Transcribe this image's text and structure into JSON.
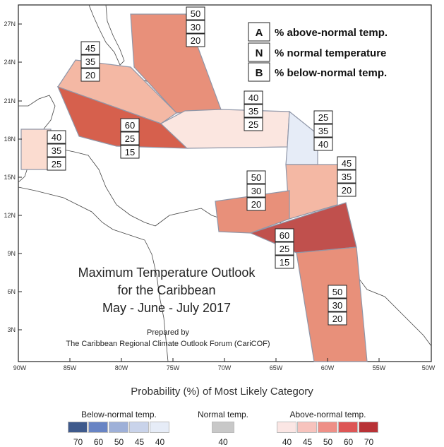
{
  "map": {
    "title_lines": [
      "Maximum Temperature Outlook",
      "for the Caribbean",
      "May - June - July 2017"
    ],
    "credit_lines": [
      "Prepared by",
      "The Caribbean Regional Climate Outlook Forum (CariCOF)"
    ],
    "lat_labels": [
      "27N",
      "24N",
      "21N",
      "18N",
      "15N",
      "12N",
      "9N",
      "6N",
      "3N"
    ],
    "lon_labels": [
      "90W",
      "85W",
      "80W",
      "75W",
      "70W",
      "65W",
      "60W",
      "55W",
      "50W"
    ],
    "region_colors": {
      "above_70": "#c0504d",
      "above_60": "#d6604d",
      "above_50": "#e8907a",
      "above_45": "#f4b8a4",
      "above_40": "#fbdcd0",
      "below_40": "#e6ecf7"
    }
  },
  "key": [
    {
      "letter": "A",
      "label": "% above-normal temp."
    },
    {
      "letter": "N",
      "label": "% normal temperature"
    },
    {
      "letter": "B",
      "label": "% below-normal temp."
    }
  ],
  "regions": [
    {
      "name": "bahamas",
      "probs": [
        "50",
        "30",
        "20"
      ]
    },
    {
      "name": "cuba-west",
      "probs": [
        "45",
        "35",
        "20"
      ]
    },
    {
      "name": "central-caribbean",
      "probs": [
        "60",
        "25",
        "15"
      ]
    },
    {
      "name": "belize",
      "probs": [
        "40",
        "35",
        "25"
      ]
    },
    {
      "name": "hispaniola-pr",
      "probs": [
        "40",
        "35",
        "25"
      ]
    },
    {
      "name": "northern-leewards",
      "probs": [
        "25",
        "35",
        "40"
      ]
    },
    {
      "name": "windwards",
      "probs": [
        "45",
        "35",
        "20"
      ]
    },
    {
      "name": "abc-islands",
      "probs": [
        "50",
        "30",
        "20"
      ]
    },
    {
      "name": "trinidad",
      "probs": [
        "60",
        "25",
        "15"
      ]
    },
    {
      "name": "guianas",
      "probs": [
        "50",
        "30",
        "20"
      ]
    }
  ],
  "legend": {
    "title": "Probability (%) of Most Likely Category",
    "below": {
      "label": "Below-normal temp.",
      "values": [
        "70",
        "60",
        "50",
        "45",
        "40"
      ],
      "colors": [
        "#3f5a8c",
        "#6884c4",
        "#9eb0d8",
        "#c9d3ea",
        "#e6ecf7"
      ]
    },
    "normal": {
      "label": "Normal temp.",
      "values": [
        "40"
      ],
      "colors": [
        "#c8c8c8"
      ]
    },
    "above": {
      "label": "Above-normal temp.",
      "values": [
        "40",
        "45",
        "50",
        "60",
        "70"
      ],
      "colors": [
        "#fbe6e4",
        "#f7c3bd",
        "#ee8f87",
        "#dd5656",
        "#b83236"
      ]
    }
  }
}
